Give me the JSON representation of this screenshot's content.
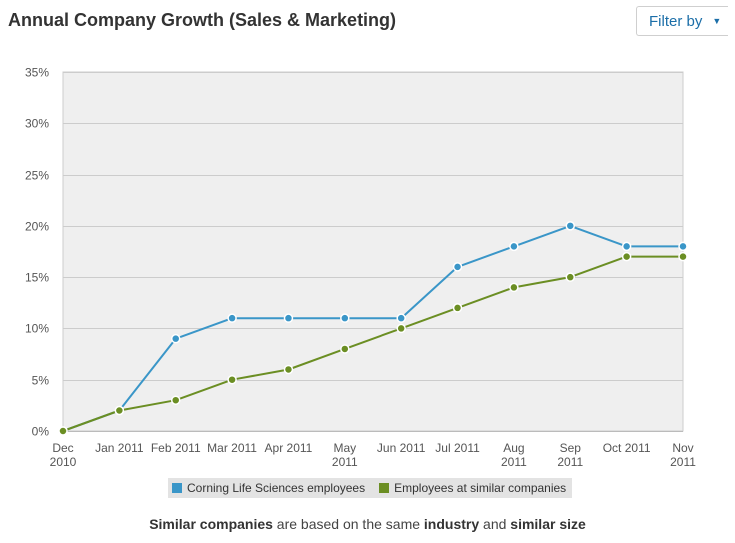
{
  "header": {
    "title": "Annual Company Growth (Sales & Marketing)",
    "filter_label": "Filter by"
  },
  "footnote": {
    "part1": "Similar companies",
    "part2": " are based on the same ",
    "part3": "industry",
    "part4": " and ",
    "part5": "similar size"
  },
  "chart_data": {
    "type": "line",
    "title": "",
    "xlabel": "",
    "ylabel": "",
    "categories": [
      "Dec 2010",
      "Jan 2011",
      "Feb 2011",
      "Mar 2011",
      "Apr 2011",
      "May 2011",
      "Jun 2011",
      "Jul 2011",
      "Aug 2011",
      "Sep 2011",
      "Oct 2011",
      "Nov 2011"
    ],
    "category_labels": [
      [
        "Dec",
        "2010"
      ],
      [
        "Jan 2011"
      ],
      [
        "Feb 2011"
      ],
      [
        "Mar 2011"
      ],
      [
        "Apr 2011"
      ],
      [
        "May",
        "2011"
      ],
      [
        "Jun 2011"
      ],
      [
        "Jul 2011"
      ],
      [
        "Aug",
        "2011"
      ],
      [
        "Sep",
        "2011"
      ],
      [
        "Oct 2011"
      ],
      [
        "Nov",
        "2011"
      ]
    ],
    "ylim": [
      0,
      35
    ],
    "yticks": [
      0,
      5,
      10,
      15,
      20,
      25,
      30,
      35
    ],
    "ytick_labels": [
      "0%",
      "5%",
      "10%",
      "15%",
      "20%",
      "25%",
      "30%",
      "35%"
    ],
    "grid": true,
    "legend_position": "bottom-center",
    "series": [
      {
        "name": "Corning Life Sciences employees",
        "color": "#3a96c8",
        "values": [
          0,
          2,
          9,
          11,
          11,
          11,
          11,
          16,
          18,
          20,
          18,
          18
        ]
      },
      {
        "name": "Employees at similar companies",
        "color": "#6b8e23",
        "values": [
          0,
          2,
          3,
          5,
          6,
          8,
          10,
          12,
          14,
          15,
          17,
          17
        ]
      }
    ]
  }
}
